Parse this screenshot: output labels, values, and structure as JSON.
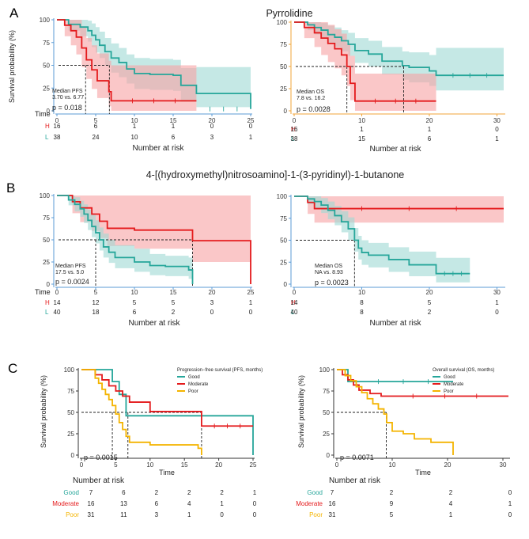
{
  "colors": {
    "red": "#e41a1c",
    "teal": "#26a69a",
    "yellow": "#f4b400",
    "red_band": "#f7a1a4",
    "teal_band": "#9ed8d3",
    "axis_blue": "#5b9bd5",
    "axis_orange": "#f0a53a"
  },
  "panels": [
    {
      "letter": "A",
      "title": "Pyrrolidine"
    },
    {
      "letter": "B",
      "title": "4-[(hydroxymethyl)nitrosoamino]-1-(3-pyridinyl)-1-butanone"
    },
    {
      "letter": "C",
      "title": ""
    }
  ],
  "chart_data": [
    {
      "id": "A1",
      "type": "line",
      "subtype": "kaplan-meier",
      "ylabel": "Survival probability (%)",
      "xlabel": "Time",
      "xlim": [
        0,
        25
      ],
      "ylim": [
        0,
        100
      ],
      "xticks": [
        "0",
        "5",
        "10",
        "15",
        "20",
        "25"
      ],
      "yticks": [
        "0",
        "25",
        "50",
        "75",
        "100"
      ],
      "median_text": [
        "Median PFS",
        "3.70 vs. 6.77"
      ],
      "median_x": [
        3.7,
        6.77
      ],
      "pvalue": "p = 0.018",
      "series": [
        {
          "name": "L",
          "color": "teal",
          "x": [
            0,
            1.5,
            3,
            4,
            4.5,
            5,
            5.5,
            6.2,
            7,
            8,
            9,
            10,
            12,
            15,
            16,
            18,
            25
          ],
          "y": [
            100,
            95,
            92,
            88,
            83,
            78,
            72,
            65,
            58,
            53,
            46,
            41,
            40,
            39,
            28,
            19,
            2
          ],
          "lo": [
            100,
            88,
            82,
            76,
            70,
            64,
            58,
            50,
            42,
            37,
            30,
            24,
            23,
            22,
            10,
            4,
            0
          ],
          "hi": [
            100,
            100,
            100,
            99,
            96,
            92,
            87,
            80,
            74,
            69,
            62,
            58,
            57,
            56,
            47,
            48,
            48
          ]
        },
        {
          "name": "H",
          "color": "red",
          "x": [
            0,
            1,
            1.8,
            2.5,
            3.2,
            3.8,
            4.5,
            5.2,
            6.7,
            7,
            18
          ],
          "y": [
            100,
            94,
            88,
            81,
            69,
            56,
            45,
            33,
            21,
            11,
            11
          ],
          "lo": [
            100,
            82,
            72,
            62,
            48,
            35,
            24,
            14,
            5,
            0,
            0
          ],
          "hi": [
            100,
            100,
            100,
            100,
            91,
            80,
            72,
            63,
            55,
            50,
            50
          ]
        }
      ],
      "risk_table": {
        "header": "Time",
        "times": [
          "0",
          "5",
          "10",
          "15",
          "20",
          "25"
        ],
        "rows": [
          {
            "label": "H",
            "color": "red",
            "values": [
              "16",
              "6",
              "1",
              "1",
              "0",
              "0"
            ]
          },
          {
            "label": "L",
            "color": "teal",
            "values": [
              "38",
              "24",
              "10",
              "6",
              "3",
              "1"
            ]
          }
        ],
        "title": "Number at risk"
      }
    },
    {
      "id": "A2",
      "type": "line",
      "subtype": "kaplan-meier",
      "xlim": [
        0,
        31
      ],
      "ylim": [
        0,
        100
      ],
      "xticks": [
        "0",
        "10",
        "20",
        "30"
      ],
      "yticks": [
        "0",
        "25",
        "50",
        "75",
        "100"
      ],
      "median_text": [
        "Median OS",
        "7.8 vs. 16.2"
      ],
      "median_x": [
        7.8,
        16.2
      ],
      "pvalue": "p = 0.0028",
      "series": [
        {
          "name": "L",
          "color": "teal",
          "x": [
            0,
            2,
            3,
            4,
            5,
            6,
            7,
            8,
            9,
            11,
            13,
            16,
            17,
            20,
            21,
            31
          ],
          "y": [
            100,
            97,
            94,
            91,
            86,
            83,
            79,
            75,
            68,
            64,
            56,
            51,
            49,
            45,
            40,
            40
          ],
          "lo": [
            100,
            91,
            86,
            82,
            76,
            72,
            67,
            62,
            54,
            50,
            41,
            35,
            32,
            28,
            23,
            23
          ],
          "hi": [
            100,
            100,
            100,
            99,
            96,
            94,
            91,
            88,
            82,
            79,
            72,
            67,
            66,
            63,
            71,
            71
          ]
        },
        {
          "name": "H",
          "color": "red",
          "x": [
            0,
            1.5,
            3,
            4,
            5,
            6,
            7,
            7.8,
            8.3,
            9,
            21
          ],
          "y": [
            100,
            94,
            88,
            82,
            76,
            70,
            63,
            50,
            31,
            11,
            11
          ],
          "lo": [
            100,
            82,
            72,
            63,
            55,
            48,
            40,
            28,
            12,
            0,
            0
          ],
          "hi": [
            100,
            100,
            100,
            100,
            97,
            92,
            87,
            76,
            62,
            42,
            42
          ]
        }
      ],
      "risk_table": {
        "header": "",
        "times": [
          "0",
          "10",
          "20",
          "30"
        ],
        "rows": [
          {
            "label": "H",
            "color": "red",
            "values": [
              "16",
              "1",
              "1",
              "0"
            ]
          },
          {
            "label": "L",
            "color": "teal",
            "values": [
              "38",
              "15",
              "6",
              "1"
            ]
          }
        ],
        "title": "Number at risk"
      }
    },
    {
      "id": "B1",
      "type": "line",
      "subtype": "kaplan-meier",
      "xlim": [
        0,
        25
      ],
      "ylim": [
        0,
        100
      ],
      "xticks": [
        "0",
        "5",
        "10",
        "15",
        "20",
        "25"
      ],
      "yticks": [
        "0",
        "25",
        "50",
        "75",
        "100"
      ],
      "median_text": [
        "Median PFS",
        "17.5 vs. 5.0"
      ],
      "median_x": [
        5.0,
        17.5
      ],
      "pvalue": "p = 0.0024",
      "series": [
        {
          "name": "H",
          "color": "red",
          "x": [
            0,
            2,
            3,
            4.5,
            5.5,
            6.5,
            10,
            17.5,
            25
          ],
          "y": [
            100,
            93,
            86,
            79,
            71,
            63,
            61,
            49,
            0
          ],
          "lo": [
            100,
            80,
            70,
            60,
            52,
            43,
            40,
            25,
            0
          ],
          "hi": [
            100,
            100,
            100,
            100,
            100,
            100,
            100,
            100,
            100
          ]
        },
        {
          "name": "L",
          "color": "teal",
          "x": [
            0,
            1.5,
            2.3,
            3,
            3.5,
            4,
            4.5,
            5,
            5.5,
            6,
            6.7,
            7.5,
            10,
            12,
            14,
            17,
            17.5
          ],
          "y": [
            100,
            95,
            90,
            85,
            79,
            72,
            65,
            58,
            50,
            42,
            36,
            30,
            25,
            21,
            20,
            16,
            0
          ],
          "lo": [
            100,
            89,
            82,
            76,
            69,
            61,
            53,
            46,
            38,
            30,
            24,
            18,
            14,
            10,
            9,
            6,
            0
          ],
          "hi": [
            100,
            100,
            98,
            94,
            90,
            84,
            78,
            72,
            64,
            57,
            50,
            44,
            40,
            34,
            32,
            30,
            30
          ]
        }
      ],
      "risk_table": {
        "header": "Time",
        "times": [
          "0",
          "5",
          "10",
          "15",
          "20",
          "25"
        ],
        "rows": [
          {
            "label": "H",
            "color": "red",
            "values": [
              "14",
              "12",
              "5",
              "5",
              "3",
              "1"
            ]
          },
          {
            "label": "L",
            "color": "teal",
            "values": [
              "40",
              "18",
              "6",
              "2",
              "0",
              "0"
            ]
          }
        ],
        "title": "Number at risk"
      }
    },
    {
      "id": "B2",
      "type": "line",
      "subtype": "kaplan-meier",
      "xlim": [
        0,
        31
      ],
      "ylim": [
        0,
        100
      ],
      "xticks": [
        "0",
        "10",
        "20",
        "30"
      ],
      "yticks": [
        "0",
        "25",
        "50",
        "75",
        "100"
      ],
      "median_text": [
        "Median OS",
        "NA vs. 8.93"
      ],
      "median_x": [
        8.93
      ],
      "pvalue": "p = 0.0023",
      "series": [
        {
          "name": "H",
          "color": "red",
          "x": [
            0,
            2,
            3,
            31
          ],
          "y": [
            100,
            93,
            86,
            86
          ],
          "lo": [
            100,
            80,
            70,
            70
          ],
          "hi": [
            100,
            100,
            100,
            100
          ]
        },
        {
          "name": "L",
          "color": "teal",
          "x": [
            0,
            2,
            3,
            4,
            5,
            6,
            7,
            8,
            8.93,
            9.5,
            10,
            11,
            14,
            17,
            21,
            26
          ],
          "y": [
            100,
            97,
            94,
            90,
            84,
            78,
            71,
            63,
            50,
            41,
            36,
            33,
            28,
            22,
            12,
            12
          ],
          "lo": [
            100,
            91,
            86,
            81,
            74,
            67,
            59,
            50,
            37,
            28,
            22,
            19,
            14,
            9,
            2,
            2
          ],
          "hi": [
            100,
            100,
            100,
            98,
            94,
            89,
            83,
            76,
            64,
            55,
            50,
            47,
            42,
            37,
            30,
            30
          ]
        }
      ],
      "risk_table": {
        "header": "",
        "times": [
          "0",
          "10",
          "20",
          "30"
        ],
        "rows": [
          {
            "label": "H",
            "color": "red",
            "values": [
              "14",
              "8",
              "5",
              "1"
            ]
          },
          {
            "label": "L",
            "color": "teal",
            "values": [
              "40",
              "8",
              "2",
              "0"
            ]
          }
        ],
        "title": "Number at risk"
      }
    },
    {
      "id": "C1",
      "type": "line",
      "subtype": "kaplan-meier",
      "ylabel": "Survival probability (%)",
      "xlabel": "Time",
      "xlim": [
        0,
        25
      ],
      "ylim": [
        0,
        100
      ],
      "xticks": [
        "0",
        "5",
        "10",
        "15",
        "20",
        "25"
      ],
      "yticks": [
        "0",
        "25",
        "50",
        "75",
        "100"
      ],
      "median_x": [
        4.5,
        6.77,
        17.5
      ],
      "pvalue": "p = 0.0015",
      "legend": {
        "title": "Progression−free survival (PFS, months)",
        "position": "top-right"
      },
      "series": [
        {
          "name": "Good",
          "color": "teal",
          "x": [
            0,
            4.5,
            5.5,
            6.5,
            25,
            25
          ],
          "y": [
            100,
            86,
            71,
            46,
            46,
            0
          ]
        },
        {
          "name": "Moderate",
          "color": "red",
          "x": [
            0,
            2,
            3,
            4,
            5,
            6,
            7,
            10,
            17.5,
            25
          ],
          "y": [
            100,
            94,
            88,
            81,
            75,
            69,
            62,
            51,
            34,
            34
          ]
        },
        {
          "name": "Poor",
          "color": "yellow",
          "x": [
            0,
            2,
            2.5,
            3,
            3.5,
            4,
            4.5,
            5,
            5.5,
            6,
            6.5,
            7,
            10,
            17,
            17.5
          ],
          "y": [
            100,
            90,
            84,
            77,
            71,
            65,
            58,
            48,
            38,
            30,
            22,
            15,
            12,
            8,
            0
          ]
        }
      ],
      "risk_table": {
        "header": "",
        "times": [
          "0",
          "5",
          "10",
          "15",
          "20",
          "25"
        ],
        "rows": [
          {
            "label": "Good",
            "color": "teal",
            "values": [
              "7",
              "6",
              "2",
              "2",
              "2",
              "1"
            ]
          },
          {
            "label": "Moderate",
            "color": "red",
            "values": [
              "16",
              "13",
              "6",
              "4",
              "1",
              "0"
            ]
          },
          {
            "label": "Poor",
            "color": "yellow",
            "values": [
              "31",
              "11",
              "3",
              "1",
              "0",
              "0"
            ]
          }
        ],
        "title": "Number at risk"
      }
    },
    {
      "id": "C2",
      "type": "line",
      "subtype": "kaplan-meier",
      "ylabel": "Survival probability (%)",
      "xlabel": "Time",
      "xlim": [
        0,
        31
      ],
      "ylim": [
        0,
        100
      ],
      "xticks": [
        "0",
        "10",
        "20",
        "30"
      ],
      "yticks": [
        "0",
        "25",
        "50",
        "75",
        "100"
      ],
      "median_x": [
        8.93
      ],
      "pvalue": "p = 0.0071",
      "legend": {
        "title": "Overall survival (OS, months)",
        "position": "top-right"
      },
      "series": [
        {
          "name": "Good",
          "color": "teal",
          "x": [
            0,
            2,
            3,
            21
          ],
          "y": [
            100,
            86,
            86,
            86
          ]
        },
        {
          "name": "Moderate",
          "color": "red",
          "x": [
            0,
            1,
            2,
            3,
            4,
            6,
            8,
            31
          ],
          "y": [
            100,
            94,
            88,
            82,
            76,
            72,
            69,
            69
          ]
        },
        {
          "name": "Poor",
          "color": "yellow",
          "x": [
            0,
            1.5,
            2.5,
            3.5,
            4.5,
            5.5,
            6.5,
            7.5,
            8.5,
            9,
            10,
            12,
            14,
            17,
            21,
            21
          ],
          "y": [
            100,
            93,
            87,
            80,
            73,
            66,
            60,
            54,
            48,
            38,
            28,
            25,
            19,
            15,
            15,
            0
          ]
        }
      ],
      "risk_table": {
        "header": "",
        "times": [
          "0",
          "10",
          "20",
          "30"
        ],
        "rows": [
          {
            "label": "Good",
            "color": "teal",
            "values": [
              "7",
              "2",
              "2",
              "0"
            ]
          },
          {
            "label": "Moderate",
            "color": "red",
            "values": [
              "16",
              "9",
              "4",
              "1"
            ]
          },
          {
            "label": "Poor",
            "color": "yellow",
            "values": [
              "31",
              "5",
              "1",
              "0"
            ]
          }
        ],
        "title": "Number at risk"
      }
    }
  ]
}
